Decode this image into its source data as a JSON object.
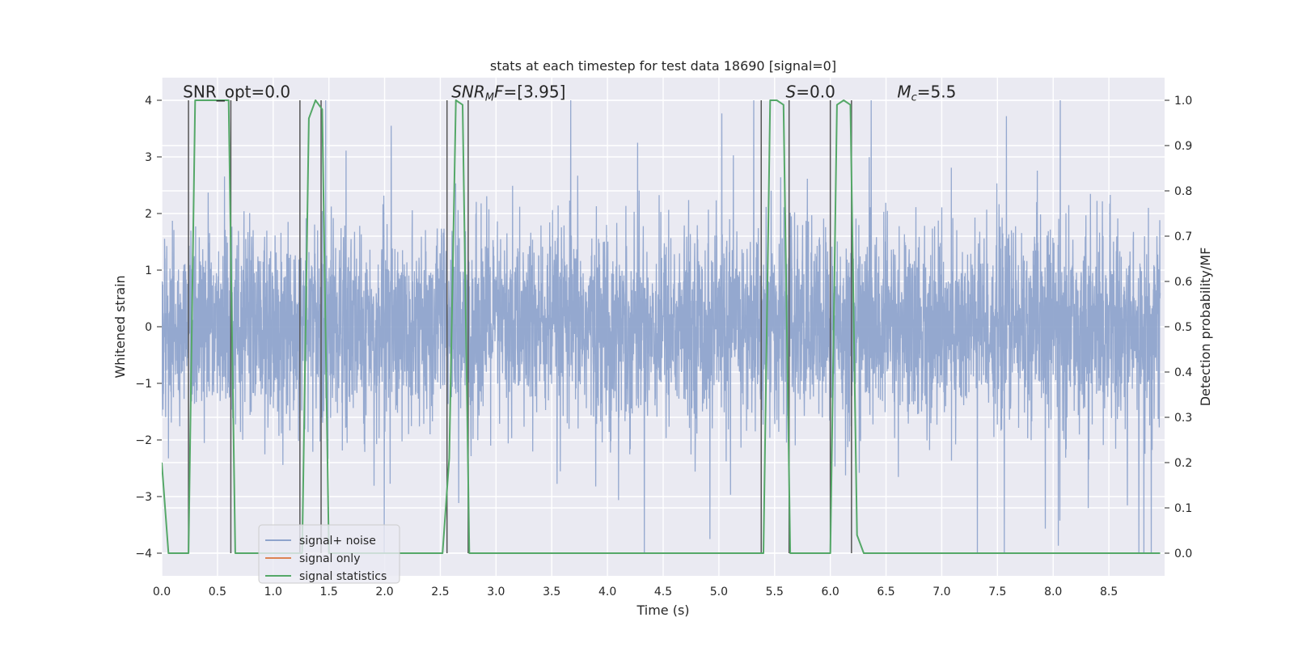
{
  "chart_data": {
    "type": "line",
    "title": "stats at each timestep for test data 18690 [signal=0]",
    "xlabel": "Time (s)",
    "ylabel": "Whitened strain",
    "y2label": "Detection probability/MF",
    "xlim": [
      0.0,
      9.0
    ],
    "ylim": [
      -4.4,
      4.4
    ],
    "y2lim": [
      -0.05,
      1.05
    ],
    "xticks": [
      0.0,
      0.5,
      1.0,
      1.5,
      2.0,
      2.5,
      3.0,
      3.5,
      4.0,
      4.5,
      5.0,
      5.5,
      6.0,
      6.5,
      7.0,
      7.5,
      8.0,
      8.5
    ],
    "xtick_labels": [
      "0.0",
      "0.5",
      "1.0",
      "1.5",
      "2.0",
      "2.5",
      "3.0",
      "3.5",
      "4.0",
      "4.5",
      "5.0",
      "5.5",
      "6.0",
      "6.5",
      "7.0",
      "7.5",
      "8.0",
      "8.5"
    ],
    "yticks": [
      -4,
      -3,
      -2,
      -1,
      0,
      1,
      2,
      3,
      4
    ],
    "ytick_labels": [
      "−4",
      "−3",
      "−2",
      "−1",
      "0",
      "1",
      "2",
      "3",
      "4"
    ],
    "y2ticks": [
      0.0,
      0.1,
      0.2,
      0.3,
      0.4,
      0.5,
      0.6,
      0.7,
      0.8,
      0.9,
      1.0
    ],
    "y2tick_labels": [
      "0.0",
      "0.1",
      "0.2",
      "0.3",
      "0.4",
      "0.5",
      "0.6",
      "0.7",
      "0.8",
      "0.9",
      "1.0"
    ],
    "grid": true,
    "legend_position": "lower-left",
    "annotations": [
      {
        "x": 0.19,
        "y": 4.05,
        "html": "SNR_opt=0.0"
      },
      {
        "x": 2.6,
        "y": 4.05,
        "html": "<tspan font-style='italic'>SNR</tspan><tspan font-style='italic' font-size='13' dy='4'>M</tspan><tspan font-style='italic' dy='-4'>F</tspan>=[3.95]"
      },
      {
        "x": 5.6,
        "y": 4.05,
        "html": "<tspan font-style='italic'>S</tspan>=0.0"
      },
      {
        "x": 6.6,
        "y": 4.05,
        "html": "<tspan font-style='italic'>M</tspan><tspan font-style='italic' font-size='13' dy='4'>c</tspan><tspan dy='-4'>=5.5</tspan>"
      }
    ],
    "vertical_lines": [
      0.24,
      0.62,
      1.24,
      1.43,
      2.56,
      2.75,
      5.38,
      5.63,
      6.0,
      6.19
    ],
    "vertical_lines_range": [
      -4.0,
      4.0
    ],
    "series": [
      {
        "name": "signal+ noise",
        "color": "#8fa4cc",
        "axis": "left",
        "kind": "noise",
        "envelope_mean": 2.0,
        "peak_examples": [
          {
            "x": 1.47,
            "y": 4.0
          },
          {
            "x": 2.06,
            "y": 3.55
          },
          {
            "x": 3.67,
            "y": 4.0
          },
          {
            "x": 7.32,
            "y": -4.0
          },
          {
            "x": 8.77,
            "y": -4.0
          },
          {
            "x": 8.88,
            "y": -4.0
          },
          {
            "x": 4.92,
            "y": -3.75
          },
          {
            "x": 7.58,
            "y": 3.72
          },
          {
            "x": 4.27,
            "y": 3.25
          }
        ]
      },
      {
        "name": "signal only",
        "color": "#dd8452",
        "axis": "left",
        "x": [
          0.0,
          9.0
        ],
        "y": [
          0.0,
          0.0
        ]
      },
      {
        "name": "signal statistics",
        "color": "#55a868",
        "axis": "right",
        "x": [
          0.0,
          0.06,
          0.12,
          0.18,
          0.24,
          0.3,
          0.36,
          0.42,
          0.48,
          0.54,
          0.6,
          0.66,
          0.72,
          1.2,
          1.26,
          1.32,
          1.38,
          1.44,
          1.5,
          2.46,
          2.52,
          2.58,
          2.64,
          2.7,
          2.76,
          2.82,
          5.34,
          5.4,
          5.46,
          5.52,
          5.58,
          5.64,
          5.7,
          5.94,
          6.0,
          6.06,
          6.12,
          6.18,
          6.24,
          6.3,
          8.96
        ],
        "y": [
          0.2,
          0.0,
          0.0,
          0.0,
          0.0,
          1.0,
          1.0,
          1.0,
          1.0,
          1.0,
          1.0,
          0.0,
          0.0,
          0.0,
          0.0,
          0.96,
          1.0,
          0.98,
          0.0,
          0.0,
          0.0,
          0.21,
          1.0,
          0.99,
          0.0,
          0.0,
          0.0,
          0.0,
          1.0,
          1.0,
          0.99,
          0.0,
          0.0,
          0.0,
          0.0,
          0.99,
          1.0,
          0.99,
          0.04,
          0.0,
          0.0
        ]
      }
    ]
  }
}
